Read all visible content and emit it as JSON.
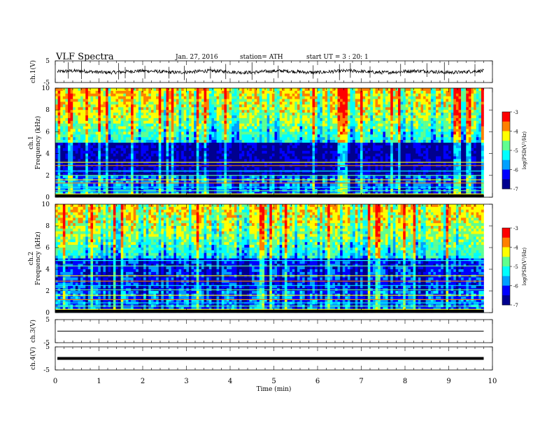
{
  "header": {
    "title": "VLF  Spectra",
    "date": "Jan. 27, 2016",
    "station": "station= ATH",
    "start_ut": "start  UT  =   3  : 20: 1"
  },
  "colors": {
    "colormap": [
      "#00008f",
      "#0000ff",
      "#00a0ff",
      "#00ffff",
      "#60ff90",
      "#ffff00",
      "#ff8000",
      "#ff0000",
      "#ffffff"
    ]
  },
  "chart_data": [
    {
      "type": "line",
      "panel": "ch1-waveform",
      "ylabel": "ch.1(V)",
      "ylim": [
        -5,
        5
      ],
      "yticks": [
        "5",
        "-5"
      ],
      "xlim": [
        0,
        10
      ],
      "baseline": 0,
      "spike_times_min": [
        0.3,
        0.6,
        1.45,
        1.6,
        2.05,
        2.6,
        2.95,
        3.55,
        3.9,
        4.5,
        5.1,
        5.9,
        6.5,
        6.75,
        7.2,
        7.9,
        8.5,
        8.9,
        9.6
      ]
    },
    {
      "type": "heatmap",
      "panel": "ch1-spectrogram",
      "ylabel": "ch.1\nFrequency  (kHz)",
      "ylim": [
        0,
        10
      ],
      "yticks": [
        "0",
        "2",
        "4",
        "6",
        "8",
        "10"
      ],
      "xlim": [
        0,
        10
      ],
      "colorbar_label": "log(PSD(V²/Hz)",
      "colorbar_range": [
        -7,
        -3
      ],
      "colorbar_ticks": [
        "-3",
        "-4",
        "-5",
        "-6",
        "-7"
      ],
      "tonal_lines_khz": [
        0.3,
        0.6,
        0.9,
        1.3,
        1.6,
        2.0,
        2.4,
        2.9,
        3.2
      ]
    },
    {
      "type": "heatmap",
      "panel": "ch2-spectrogram",
      "ylabel": "ch.2\nFrequency  (kHz)",
      "ylim": [
        0,
        10
      ],
      "yticks": [
        "0",
        "2",
        "4",
        "6",
        "8",
        "10"
      ],
      "xlim": [
        0,
        10
      ],
      "colorbar_label": "log(PSD(V²/Hz)",
      "colorbar_range": [
        -7,
        -3
      ],
      "colorbar_ticks": [
        "-3",
        "-4",
        "-5",
        "-6",
        "-7"
      ],
      "tonal_lines_khz": [
        0.3,
        0.6,
        0.9,
        1.2,
        1.6,
        2.1,
        2.5,
        2.9,
        3.4,
        4.3,
        4.8
      ]
    },
    {
      "type": "line",
      "panel": "ch3-waveform",
      "ylabel": "ch.3(V)",
      "ylim": [
        -5,
        5
      ],
      "yticks": [
        "5",
        "-5"
      ],
      "xlim": [
        0,
        10
      ],
      "baseline": 0
    },
    {
      "type": "line",
      "panel": "ch4-waveform",
      "ylabel": "ch.4(V)",
      "ylim": [
        -5,
        5
      ],
      "yticks": [
        "5",
        "-5"
      ],
      "xlim": [
        0,
        10
      ],
      "baseline": 0
    }
  ],
  "xaxis": {
    "label": "Time  (min)",
    "range": [
      0,
      10
    ],
    "ticks": [
      "0",
      "1",
      "2",
      "3",
      "4",
      "5",
      "6",
      "7",
      "8",
      "9",
      "10"
    ],
    "data_end_min": 9.8
  }
}
